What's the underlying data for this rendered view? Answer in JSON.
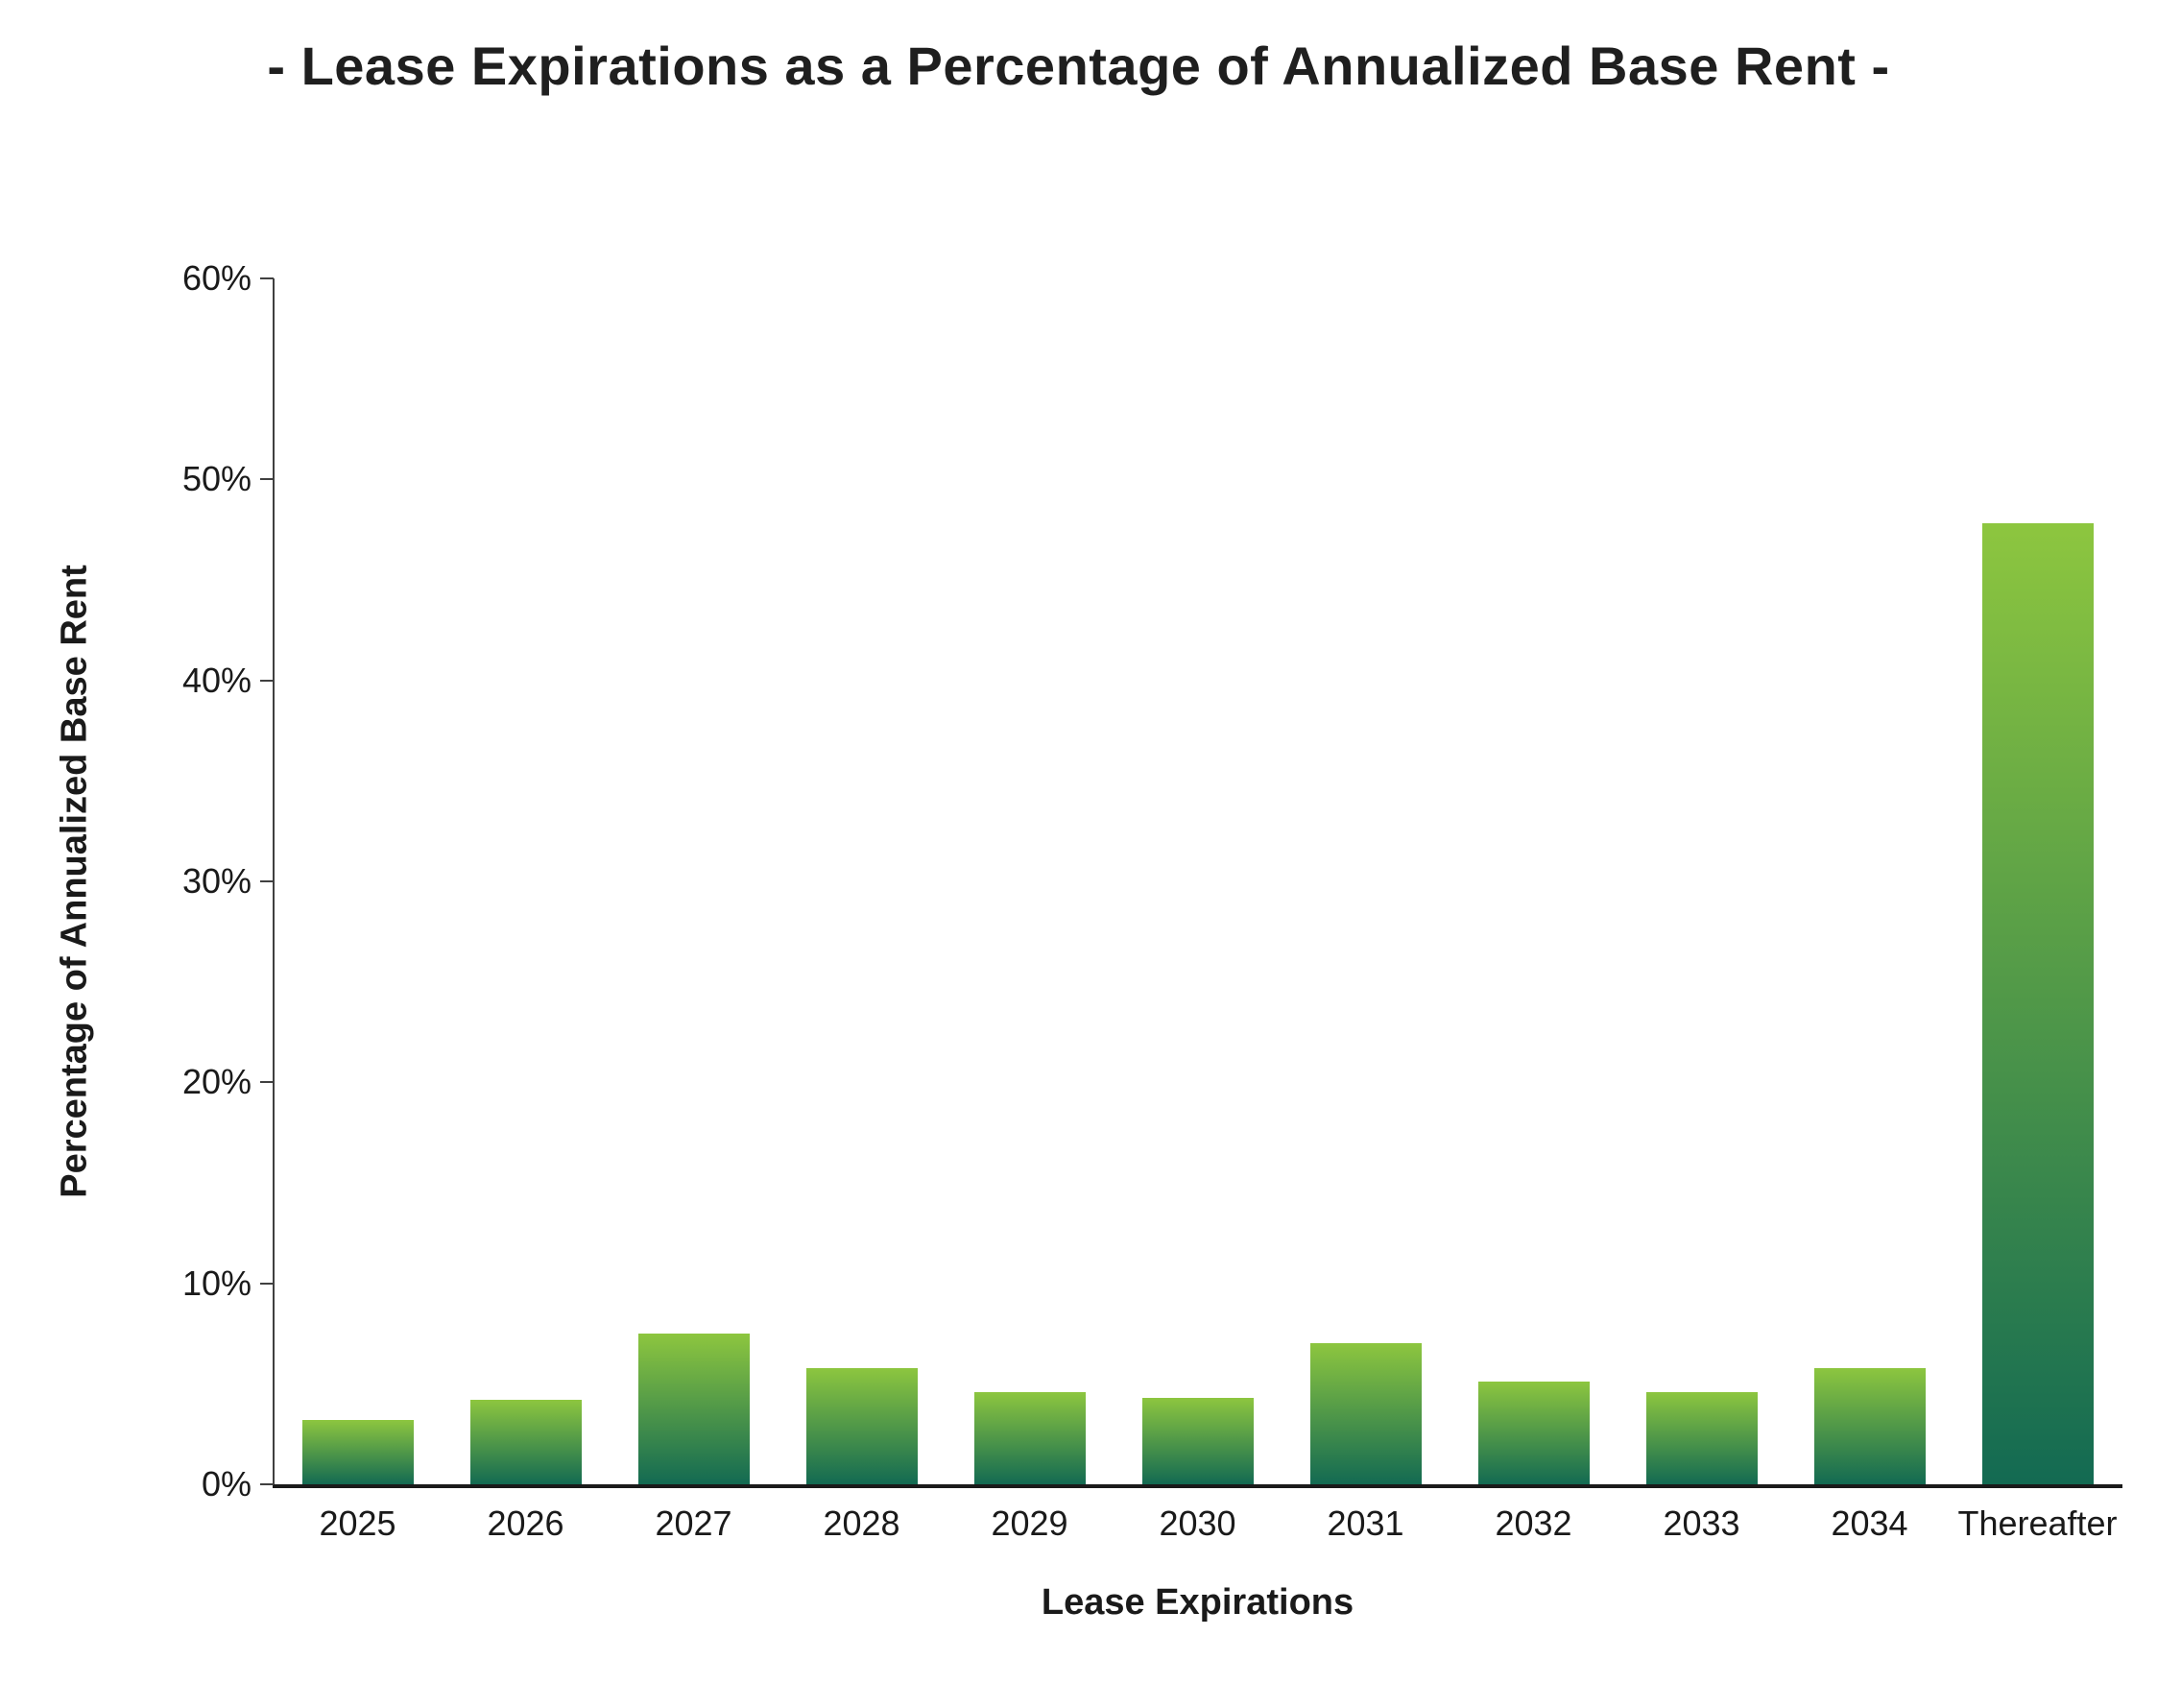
{
  "chart_data": {
    "type": "bar",
    "title": "- Lease Expirations as a Percentage of Annualized Base Rent -",
    "xlabel": "Lease Expirations",
    "ylabel": "Percentage of Annualized Base Rent",
    "categories": [
      "2025",
      "2026",
      "2027",
      "2028",
      "2029",
      "2030",
      "2031",
      "2032",
      "2033",
      "2034",
      "Thereafter"
    ],
    "values": [
      3.2,
      4.2,
      7.5,
      5.8,
      4.6,
      4.3,
      7.0,
      5.1,
      4.6,
      5.8,
      47.8
    ],
    "ylim": [
      0,
      60
    ],
    "ytick_step": 10,
    "ytick_labels": [
      "0%",
      "10%",
      "20%",
      "30%",
      "40%",
      "50%",
      "60%"
    ],
    "grid": false,
    "legend": "none",
    "bar_gradient_top": "#8DC63F",
    "bar_gradient_bottom": "#136A52",
    "axis_color": "#1a1a1a"
  }
}
